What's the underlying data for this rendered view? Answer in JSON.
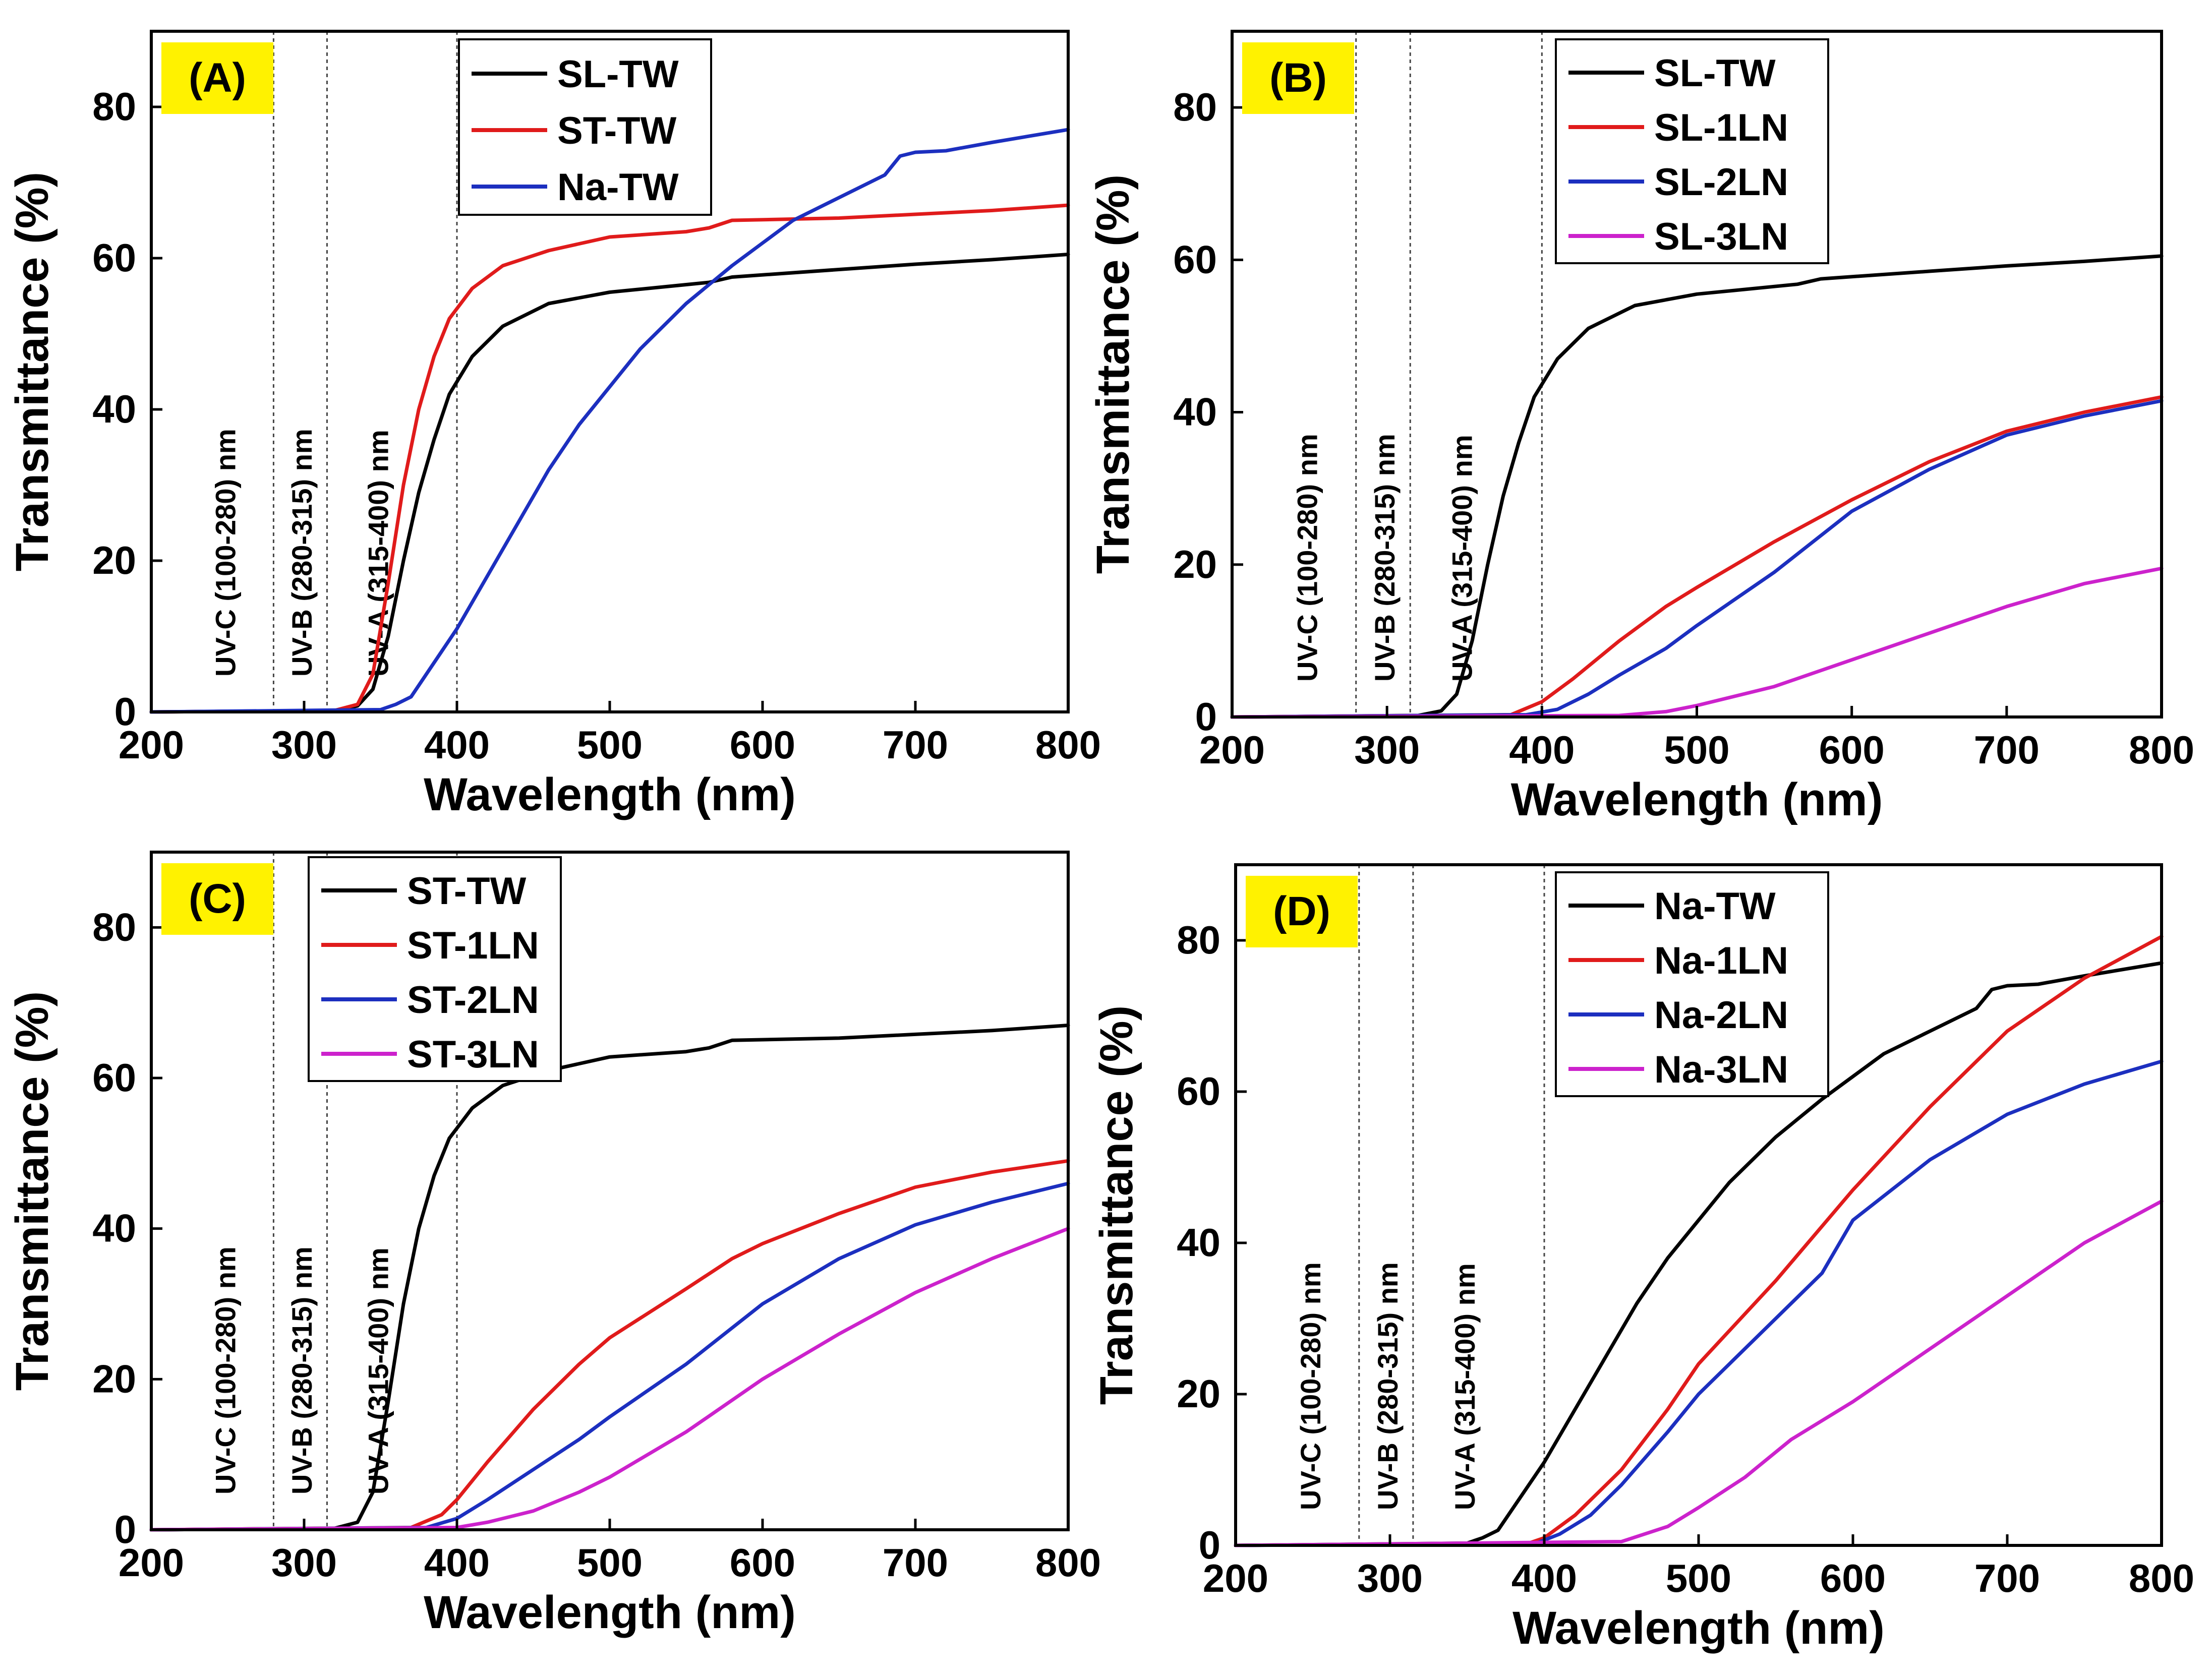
{
  "chart_data": [
    {
      "type": "line",
      "panel_label": "(A)",
      "xlabel": "Wavelength (nm)",
      "ylabel": "Transmittance (%)",
      "xlim": [
        200,
        800
      ],
      "ylim": [
        0,
        90
      ],
      "xticks": [
        "200",
        "300",
        "400",
        "500",
        "600",
        "700",
        "800"
      ],
      "yticks": [
        "0",
        "20",
        "40",
        "60",
        "80"
      ],
      "grid": false,
      "legend_position": "top-center",
      "bands": [
        "UV-C (100-280) nm",
        "UV-B (280-315) nm",
        "UV-A (315-400) nm"
      ],
      "series": [
        {
          "name": "SL-TW",
          "color": "#000000",
          "x": [
            200,
            320,
            335,
            345,
            355,
            365,
            375,
            385,
            395,
            410,
            430,
            460,
            500,
            550,
            565,
            580,
            650,
            700,
            750,
            800
          ],
          "y": [
            0,
            0.2,
            0.8,
            3,
            10,
            20,
            29,
            36,
            42,
            47,
            51,
            54,
            55.5,
            56.5,
            56.8,
            57.5,
            58.5,
            59.2,
            59.8,
            60.5
          ]
        },
        {
          "name": "ST-TW",
          "color": "#e01b1b",
          "x": [
            200,
            320,
            335,
            345,
            355,
            365,
            375,
            385,
            395,
            410,
            430,
            460,
            500,
            550,
            565,
            580,
            650,
            700,
            750,
            800
          ],
          "y": [
            0,
            0.2,
            1,
            5,
            17,
            30,
            40,
            47,
            52,
            56,
            59,
            61,
            62.8,
            63.5,
            64,
            65,
            65.3,
            65.8,
            66.3,
            67
          ]
        },
        {
          "name": "Na-TW",
          "color": "#1c2fbf",
          "x": [
            200,
            350,
            360,
            370,
            380,
            390,
            400,
            420,
            440,
            460,
            480,
            500,
            520,
            550,
            580,
            600,
            620,
            650,
            680,
            690,
            700,
            720,
            750,
            800
          ],
          "y": [
            0,
            0.3,
            1,
            2,
            5,
            8,
            11,
            18,
            25,
            32,
            38,
            43,
            48,
            54,
            59,
            62,
            65,
            68,
            71,
            73.5,
            74,
            74.2,
            75.3,
            77
          ]
        }
      ]
    },
    {
      "type": "line",
      "panel_label": "(B)",
      "xlabel": "Wavelength (nm)",
      "ylabel": "Transmittance (%)",
      "xlim": [
        200,
        800
      ],
      "ylim": [
        0,
        90
      ],
      "xticks": [
        "200",
        "300",
        "400",
        "500",
        "600",
        "700",
        "800"
      ],
      "yticks": [
        "0",
        "20",
        "40",
        "60",
        "80"
      ],
      "grid": false,
      "legend_position": "top-center",
      "bands": [
        "UV-C (100-280) nm",
        "UV-B (280-315) nm",
        "UV-A (315-400) nm"
      ],
      "series": [
        {
          "name": "SL-TW",
          "color": "#000000",
          "x": [
            200,
            320,
            335,
            345,
            355,
            365,
            375,
            385,
            395,
            410,
            430,
            460,
            500,
            550,
            565,
            580,
            650,
            700,
            750,
            800
          ],
          "y": [
            0,
            0.2,
            0.8,
            3,
            10,
            20,
            29,
            36,
            42,
            47,
            51,
            54,
            55.5,
            56.5,
            56.8,
            57.5,
            58.5,
            59.2,
            59.8,
            60.5
          ]
        },
        {
          "name": "SL-1LN",
          "color": "#e01b1b",
          "x": [
            200,
            380,
            400,
            420,
            450,
            480,
            500,
            550,
            600,
            650,
            700,
            750,
            800
          ],
          "y": [
            0,
            0.3,
            2,
            5,
            10,
            14.5,
            17,
            23,
            28.5,
            33.5,
            37.5,
            40,
            42
          ]
        },
        {
          "name": "SL-2LN",
          "color": "#1c2fbf",
          "x": [
            200,
            390,
            410,
            430,
            450,
            480,
            500,
            550,
            600,
            650,
            700,
            750,
            800
          ],
          "y": [
            0,
            0.3,
            1,
            3,
            5.5,
            9,
            12,
            19,
            27,
            32.5,
            37,
            39.5,
            41.5
          ]
        },
        {
          "name": "SL-3LN",
          "color": "#cc22cc",
          "x": [
            200,
            450,
            480,
            500,
            550,
            600,
            650,
            700,
            750,
            800
          ],
          "y": [
            0,
            0.2,
            0.7,
            1.5,
            4,
            7.5,
            11,
            14.5,
            17.5,
            19.5
          ]
        }
      ]
    },
    {
      "type": "line",
      "panel_label": "(C)",
      "xlabel": "Wavelength (nm)",
      "ylabel": "Transmittance (%)",
      "xlim": [
        200,
        800
      ],
      "ylim": [
        0,
        90
      ],
      "xticks": [
        "200",
        "300",
        "400",
        "500",
        "600",
        "700",
        "800"
      ],
      "yticks": [
        "0",
        "20",
        "40",
        "60",
        "80"
      ],
      "grid": false,
      "legend_position": "top-left",
      "bands": [
        "UV-C (100-280) nm",
        "UV-B (280-315) nm",
        "UV-A (315-400) nm"
      ],
      "series": [
        {
          "name": "ST-TW",
          "color": "#000000",
          "x": [
            200,
            320,
            335,
            345,
            355,
            365,
            375,
            385,
            395,
            410,
            430,
            460,
            500,
            550,
            565,
            580,
            650,
            700,
            750,
            800
          ],
          "y": [
            0,
            0.2,
            1,
            5,
            17,
            30,
            40,
            47,
            52,
            56,
            59,
            61,
            62.8,
            63.5,
            64,
            65,
            65.3,
            65.8,
            66.3,
            67
          ]
        },
        {
          "name": "ST-1LN",
          "color": "#e01b1b",
          "x": [
            200,
            370,
            390,
            400,
            420,
            450,
            480,
            500,
            550,
            580,
            600,
            650,
            700,
            750,
            800
          ],
          "y": [
            0,
            0.3,
            2,
            4,
            9,
            16,
            22,
            25.5,
            32,
            36,
            38,
            42,
            45.5,
            47.5,
            49
          ]
        },
        {
          "name": "ST-2LN",
          "color": "#1c2fbf",
          "x": [
            200,
            380,
            400,
            420,
            450,
            480,
            500,
            550,
            600,
            650,
            700,
            750,
            800
          ],
          "y": [
            0,
            0.3,
            1.5,
            4,
            8,
            12,
            15,
            22,
            30,
            36,
            40.5,
            43.5,
            46
          ]
        },
        {
          "name": "ST-3LN",
          "color": "#cc22cc",
          "x": [
            200,
            400,
            420,
            450,
            480,
            500,
            550,
            600,
            650,
            700,
            750,
            800
          ],
          "y": [
            0,
            0.3,
            1,
            2.5,
            5,
            7,
            13,
            20,
            26,
            31.5,
            36,
            40
          ]
        }
      ]
    },
    {
      "type": "line",
      "panel_label": "(D)",
      "xlabel": "Wavelength (nm)",
      "ylabel": "Transmittance (%)",
      "xlim": [
        200,
        800
      ],
      "ylim": [
        0,
        90
      ],
      "xticks": [
        "200",
        "300",
        "400",
        "500",
        "600",
        "700",
        "800"
      ],
      "yticks": [
        "0",
        "20",
        "40",
        "60",
        "80"
      ],
      "grid": false,
      "legend_position": "top-center",
      "bands": [
        "UV-C (100-280) nm",
        "UV-B (280-315) nm",
        "UV-A (315-400) nm"
      ],
      "series": [
        {
          "name": "Na-TW",
          "color": "#000000",
          "x": [
            200,
            350,
            360,
            370,
            380,
            390,
            400,
            420,
            440,
            460,
            480,
            500,
            520,
            550,
            580,
            600,
            620,
            650,
            680,
            690,
            700,
            720,
            750,
            800
          ],
          "y": [
            0,
            0.3,
            1,
            2,
            5,
            8,
            11,
            18,
            25,
            32,
            38,
            43,
            48,
            54,
            59,
            62,
            65,
            68,
            71,
            73.5,
            74,
            74.2,
            75.3,
            77
          ]
        },
        {
          "name": "Na-1LN",
          "color": "#e01b1b",
          "x": [
            200,
            390,
            400,
            420,
            450,
            480,
            500,
            550,
            600,
            650,
            700,
            750,
            800
          ],
          "y": [
            0,
            0.3,
            1,
            4,
            10,
            18,
            24,
            35,
            47,
            58,
            68,
            75,
            80.5
          ]
        },
        {
          "name": "Na-2LN",
          "color": "#1c2fbf",
          "x": [
            200,
            395,
            410,
            430,
            450,
            480,
            500,
            550,
            580,
            600,
            650,
            700,
            750,
            800
          ],
          "y": [
            0,
            0.3,
            1.5,
            4,
            8,
            15,
            20,
            30,
            36,
            43,
            51,
            57,
            61,
            64
          ]
        },
        {
          "name": "Na-3LN",
          "color": "#cc22cc",
          "x": [
            200,
            450,
            480,
            500,
            530,
            560,
            600,
            650,
            700,
            750,
            800
          ],
          "y": [
            0,
            0.5,
            2.5,
            5,
            9,
            14,
            19,
            26,
            33,
            40,
            45.5
          ]
        }
      ]
    }
  ]
}
